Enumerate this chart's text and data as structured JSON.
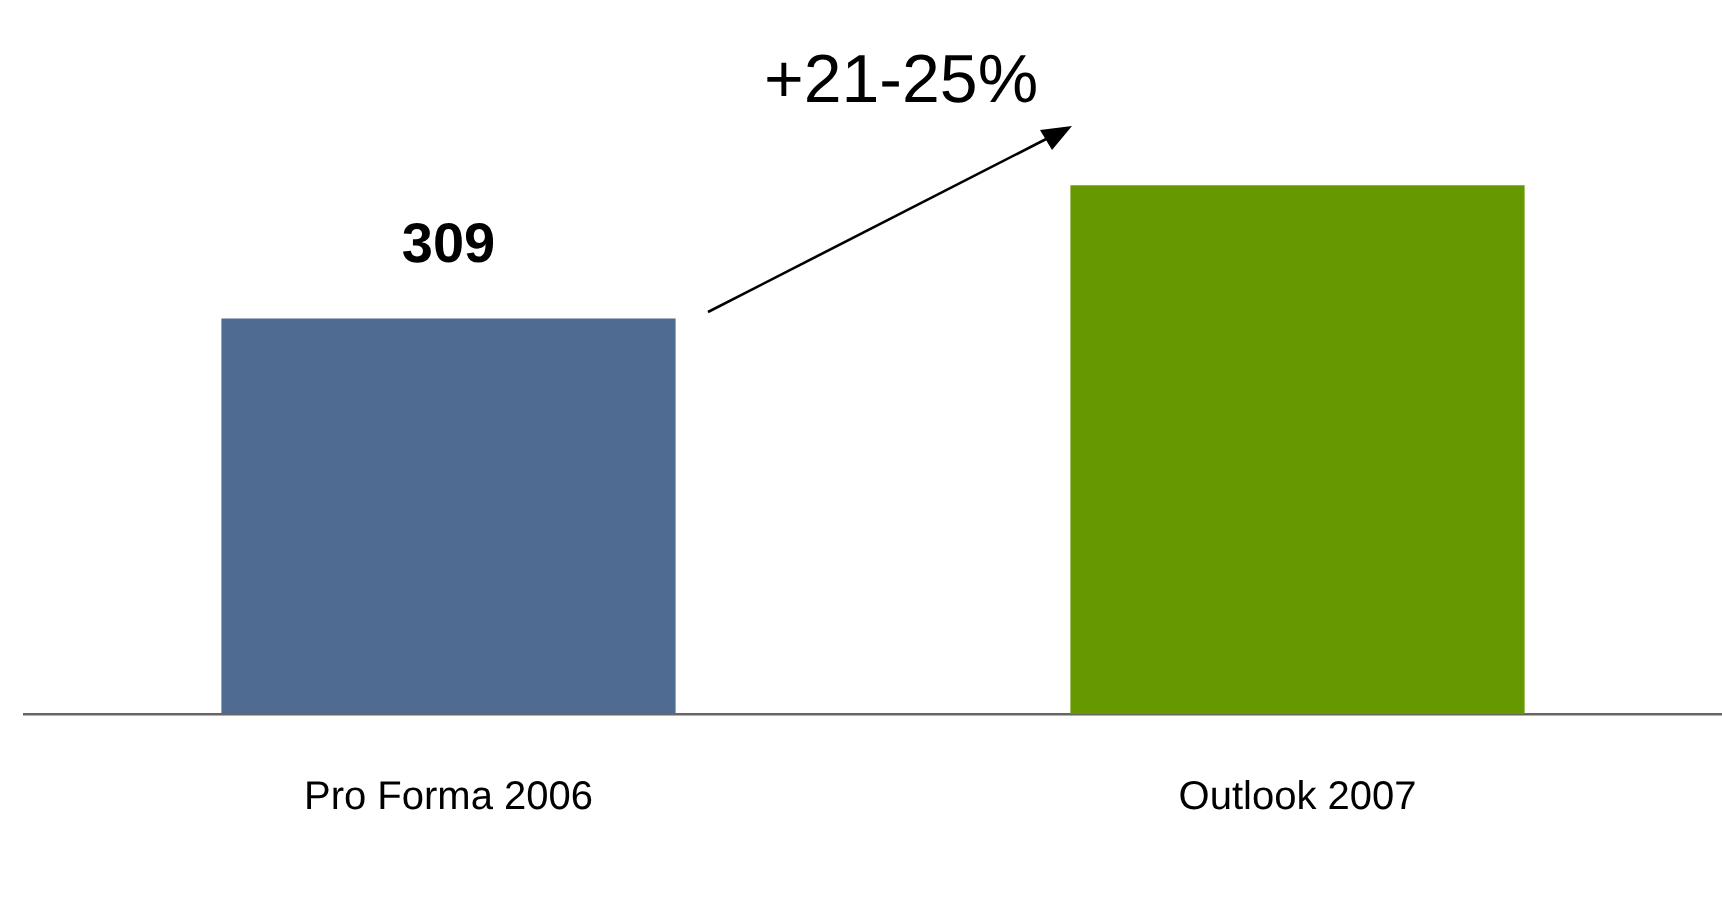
{
  "chart_data": {
    "type": "bar",
    "categories": [
      "Pro Forma 2006",
      "Outlook 2007"
    ],
    "values": [
      309,
      413
    ],
    "colors": [
      "#4f6b91",
      "#669900"
    ],
    "value_labels": [
      "309",
      null
    ],
    "annotations": [
      "+21-25%"
    ],
    "grid": false,
    "legend": false
  }
}
